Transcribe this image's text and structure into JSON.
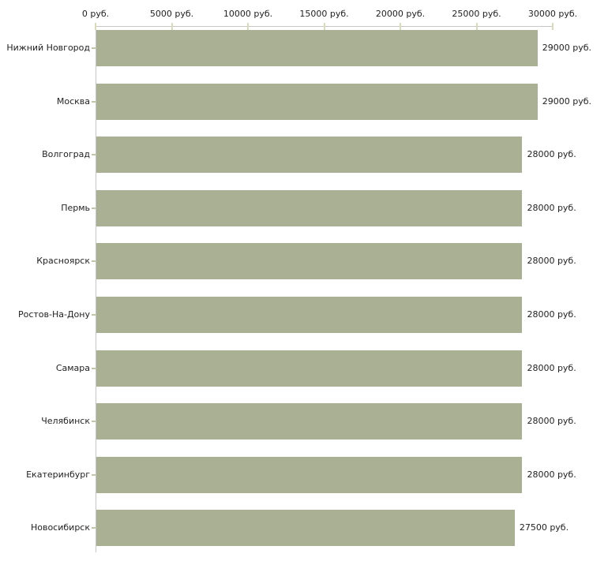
{
  "chart_data": {
    "type": "bar",
    "orientation": "horizontal",
    "title": "",
    "xlabel": "",
    "ylabel": "",
    "unit": "руб.",
    "categories": [
      "Нижний Новгород",
      "Москва",
      "Волгоград",
      "Пермь",
      "Красноярск",
      "Ростов-На-Дону",
      "Самара",
      "Челябинск",
      "Екатеринбург",
      "Новосибирск"
    ],
    "values": [
      29000,
      29000,
      28000,
      28000,
      28000,
      28000,
      28000,
      28000,
      28000,
      27500
    ],
    "value_labels": [
      "29000 руб.",
      "29000 руб.",
      "28000 руб.",
      "28000 руб.",
      "28000 руб.",
      "28000 руб.",
      "28000 руб.",
      "28000 руб.",
      "28000 руб.",
      "27500 руб."
    ],
    "x_ticks": [
      0,
      5000,
      10000,
      15000,
      20000,
      25000,
      30000
    ],
    "x_tick_labels": [
      "0 руб.",
      "5000 руб.",
      "10000 руб.",
      "15000 руб.",
      "20000 руб.",
      "25000 руб.",
      "30000 руб."
    ],
    "xlim": [
      0,
      30000
    ],
    "grid": false,
    "legend_position": "none",
    "colors": {
      "bar": "#aab094",
      "axis": "#c6c6c6",
      "axis_tick": "#d8dab9",
      "label_tick": "#c2c5a5",
      "text": "#222222",
      "background": "#ffffff"
    }
  }
}
